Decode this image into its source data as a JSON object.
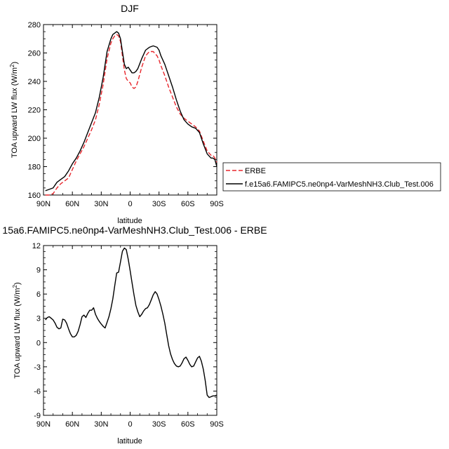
{
  "chart_data": [
    {
      "type": "line",
      "title": "DJF",
      "xlabel": "latitude",
      "ylabel": "TOA upward LW flux (W/m",
      "ylabel_sup": "2",
      "ylabel_close": ")",
      "xlim": [
        90,
        -90
      ],
      "ylim": [
        160,
        280
      ],
      "x_ticks": [
        {
          "value": 90,
          "label": "90N"
        },
        {
          "value": 60,
          "label": "60N"
        },
        {
          "value": 30,
          "label": "30N"
        },
        {
          "value": 0,
          "label": "0"
        },
        {
          "value": -30,
          "label": "30S"
        },
        {
          "value": -60,
          "label": "60S"
        },
        {
          "value": -90,
          "label": "90S"
        }
      ],
      "y_ticks": [
        160,
        180,
        200,
        220,
        240,
        260,
        280
      ],
      "legend_position": "right",
      "series": [
        {
          "name": "ERBE",
          "color": "#e8262c",
          "dash": true,
          "x": [
            88,
            84,
            80,
            76,
            72,
            68,
            64,
            60,
            56,
            52,
            48,
            44,
            40,
            36,
            32,
            28,
            24,
            20,
            18,
            16,
            14,
            12,
            10,
            8,
            6,
            4,
            2,
            0,
            -2,
            -4,
            -6,
            -8,
            -12,
            -16,
            -20,
            -24,
            -28,
            -30,
            -32,
            -36,
            -40,
            -44,
            -48,
            -52,
            -56,
            -60,
            -64,
            -68,
            -72,
            -76,
            -80,
            -84,
            -86,
            -88,
            -90
          ],
          "y": [
            160,
            160,
            161,
            165,
            168,
            170,
            172,
            178,
            184,
            189,
            194,
            200,
            206,
            213,
            224,
            238,
            256,
            267,
            270,
            272,
            273,
            272,
            268,
            258,
            248,
            242,
            240,
            239,
            236,
            235,
            236,
            240,
            250,
            258,
            261,
            261,
            258,
            255,
            251,
            244,
            236,
            229,
            222,
            217,
            214,
            212,
            210,
            208,
            205,
            198,
            191,
            188,
            188,
            186,
            183
          ]
        },
        {
          "name": "f.e15a6.FAMIPC5.ne0np4-VarMeshNH3.Club_Test.006",
          "color": "#000000",
          "dash": false,
          "x": [
            88,
            84,
            80,
            76,
            72,
            68,
            64,
            60,
            56,
            52,
            48,
            44,
            40,
            36,
            32,
            28,
            24,
            20,
            18,
            16,
            14,
            12,
            10,
            8,
            6,
            4,
            2,
            0,
            -2,
            -4,
            -6,
            -8,
            -12,
            -16,
            -20,
            -24,
            -28,
            -30,
            -32,
            -36,
            -40,
            -44,
            -48,
            -52,
            -56,
            -60,
            -64,
            -68,
            -72,
            -76,
            -80,
            -84,
            -86,
            -88,
            -90
          ],
          "y": [
            163,
            164,
            165,
            169,
            171,
            173,
            177,
            182,
            186,
            191,
            197,
            204,
            211,
            218,
            229,
            243,
            261,
            270,
            273,
            274,
            275,
            274,
            270,
            261,
            252,
            249,
            250,
            248,
            246,
            246,
            247,
            249,
            256,
            262,
            264,
            265,
            264,
            262,
            258,
            252,
            244,
            236,
            227,
            219,
            213,
            210,
            208,
            207,
            204,
            196,
            189,
            186,
            186,
            185,
            180
          ]
        }
      ]
    },
    {
      "type": "line",
      "title": "15a6.FAMIPC5.ne0np4-VarMeshNH3.Club_Test.006 - ERBE",
      "xlabel": "latitude",
      "ylabel": "TOA upward LW flux (W/m",
      "ylabel_sup": "2",
      "ylabel_close": ")",
      "xlim": [
        90,
        -90
      ],
      "ylim": [
        -9,
        12
      ],
      "x_ticks": [
        {
          "value": 90,
          "label": "90N"
        },
        {
          "value": 60,
          "label": "60N"
        },
        {
          "value": 30,
          "label": "30N"
        },
        {
          "value": 0,
          "label": "0"
        },
        {
          "value": -30,
          "label": "30S"
        },
        {
          "value": -60,
          "label": "60S"
        },
        {
          "value": -90,
          "label": "90S"
        }
      ],
      "y_ticks": [
        -9,
        -6,
        -3,
        0,
        3,
        6,
        9,
        12
      ],
      "series": [
        {
          "color": "#000000",
          "dash": false,
          "x": [
            88,
            86,
            84,
            82,
            80,
            78,
            76,
            74,
            72,
            70,
            68,
            66,
            64,
            62,
            60,
            58,
            56,
            54,
            52,
            50,
            48,
            46,
            44,
            42,
            40,
            38,
            36,
            34,
            32,
            30,
            28,
            26,
            24,
            22,
            20,
            18,
            16,
            14,
            12,
            10,
            8,
            6,
            4,
            2,
            0,
            -2,
            -4,
            -6,
            -8,
            -10,
            -12,
            -14,
            -16,
            -18,
            -20,
            -22,
            -24,
            -26,
            -28,
            -30,
            -32,
            -34,
            -36,
            -38,
            -40,
            -42,
            -44,
            -46,
            -48,
            -50,
            -52,
            -54,
            -56,
            -58,
            -60,
            -62,
            -64,
            -66,
            -68,
            -70,
            -72,
            -74,
            -76,
            -78,
            -80,
            -82,
            -84,
            -86,
            -88,
            -90
          ],
          "y": [
            2.8,
            3.1,
            3.2,
            3.0,
            2.8,
            2.4,
            1.9,
            1.7,
            1.8,
            2.9,
            2.8,
            2.4,
            1.7,
            1.1,
            0.7,
            0.7,
            0.9,
            1.4,
            2.2,
            3.2,
            3.4,
            3.1,
            3.6,
            4.0,
            4.0,
            4.3,
            3.5,
            3.0,
            2.6,
            2.3,
            2.0,
            1.8,
            2.5,
            3.2,
            4.2,
            5.4,
            7.0,
            8.6,
            8.7,
            10.0,
            11.3,
            11.7,
            11.5,
            10.3,
            8.9,
            7.4,
            5.9,
            4.6,
            3.8,
            3.2,
            3.5,
            3.9,
            4.2,
            4.3,
            4.7,
            5.3,
            5.9,
            6.3,
            6.0,
            5.3,
            4.5,
            3.5,
            2.4,
            1.0,
            -0.4,
            -1.4,
            -2.1,
            -2.6,
            -2.9,
            -3.0,
            -2.9,
            -2.5,
            -2.0,
            -1.8,
            -2.2,
            -2.7,
            -3.0,
            -2.9,
            -2.4,
            -1.9,
            -1.7,
            -2.3,
            -3.3,
            -4.7,
            -6.5,
            -6.8,
            -6.7,
            -6.6,
            -6.6,
            -6.5
          ]
        }
      ]
    }
  ]
}
